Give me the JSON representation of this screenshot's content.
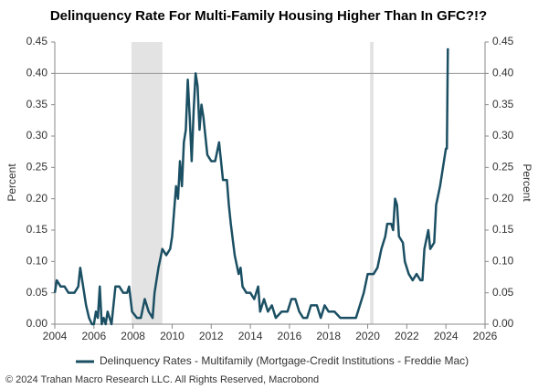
{
  "chart_data": {
    "type": "line",
    "title": "Delinquency Rate For Multi-Family Housing Higher Than In GFC?!?",
    "ylabel": "Percent",
    "y2label": "Percent",
    "footer": "© 2024 Trahan Macro Research LLC. All Rights Reserved, Macrobond",
    "xlim": [
      2004,
      2026
    ],
    "xticks": [
      2004,
      2006,
      2008,
      2010,
      2012,
      2014,
      2016,
      2018,
      2020,
      2022,
      2024,
      2026
    ],
    "ylim": [
      0,
      0.45
    ],
    "yticks": [
      {
        "value": 0,
        "label": "0.00"
      },
      {
        "value": 0.05,
        "label": "0.05"
      },
      {
        "value": 0.1,
        "label": "0.10"
      },
      {
        "value": 0.15,
        "label": "0.15"
      },
      {
        "value": 0.2,
        "label": "0.20"
      },
      {
        "value": 0.25,
        "label": "0.25"
      },
      {
        "value": 0.3,
        "label": "0.30"
      },
      {
        "value": 0.35,
        "label": "0.35"
      },
      {
        "value": 0.4,
        "label": "0.40"
      },
      {
        "value": 0.45,
        "label": "0.45"
      }
    ],
    "y2lim": [
      0,
      0.45
    ],
    "y2ticks": [
      {
        "value": 0,
        "label": "0.00"
      },
      {
        "value": 0.05,
        "label": "0.05"
      },
      {
        "value": 0.1,
        "label": "0.10"
      },
      {
        "value": 0.15,
        "label": "0.15"
      },
      {
        "value": 0.2,
        "label": "0.20"
      },
      {
        "value": 0.25,
        "label": "0.25"
      },
      {
        "value": 0.3,
        "label": "0.30"
      },
      {
        "value": 0.35,
        "label": "0.35"
      },
      {
        "value": 0.4,
        "label": "0.40"
      },
      {
        "value": 0.45,
        "label": "0.45"
      }
    ],
    "reference_line": 0.4,
    "shaded_ranges": [
      [
        2007.92,
        2009.5
      ],
      [
        2020.12,
        2020.3
      ]
    ],
    "x": [
      2004.0,
      2004.1,
      2004.3,
      2004.5,
      2004.7,
      2005.0,
      2005.2,
      2005.3,
      2005.45,
      2005.6,
      2005.75,
      2005.9,
      2006.0,
      2006.1,
      2006.2,
      2006.3,
      2006.4,
      2006.5,
      2006.6,
      2006.7,
      2006.8,
      2006.9,
      2007.0,
      2007.1,
      2007.3,
      2007.5,
      2007.7,
      2007.8,
      2007.95,
      2008.2,
      2008.4,
      2008.6,
      2008.8,
      2009.0,
      2009.1,
      2009.3,
      2009.5,
      2009.7,
      2009.9,
      2010.0,
      2010.2,
      2010.3,
      2010.4,
      2010.5,
      2010.6,
      2010.7,
      2010.8,
      2010.9,
      2011.0,
      2011.1,
      2011.2,
      2011.3,
      2011.4,
      2011.5,
      2011.6,
      2011.7,
      2011.8,
      2012.0,
      2012.2,
      2012.4,
      2012.6,
      2012.8,
      2012.9,
      2013.0,
      2013.2,
      2013.4,
      2013.5,
      2013.6,
      2013.8,
      2014.0,
      2014.2,
      2014.4,
      2014.5,
      2014.7,
      2014.9,
      2015.1,
      2015.3,
      2015.6,
      2015.9,
      2016.1,
      2016.3,
      2016.5,
      2016.7,
      2016.9,
      2017.1,
      2017.4,
      2017.6,
      2017.8,
      2018.0,
      2018.3,
      2018.6,
      2019.0,
      2019.4,
      2019.6,
      2019.8,
      2020.0,
      2020.3,
      2020.5,
      2020.7,
      2020.9,
      2021.0,
      2021.2,
      2021.3,
      2021.4,
      2021.5,
      2021.6,
      2021.8,
      2021.9,
      2022.1,
      2022.3,
      2022.5,
      2022.7,
      2022.8,
      2022.9,
      2023.1,
      2023.2,
      2023.4,
      2023.5,
      2023.7,
      2023.9,
      2024.0,
      2024.05,
      2024.1
    ],
    "series": [
      {
        "name": "Delinquency Rates -  Multifamily (Mortgage-Credit Institutions - Freddie Mac)",
        "color": "#1b4f63",
        "values": [
          0.05,
          0.07,
          0.06,
          0.06,
          0.05,
          0.05,
          0.06,
          0.09,
          0.06,
          0.03,
          0.01,
          0.0,
          0.0,
          0.02,
          0.01,
          0.06,
          0.0,
          0.01,
          0.0,
          0.02,
          0.01,
          0.0,
          0.03,
          0.06,
          0.06,
          0.05,
          0.05,
          0.06,
          0.02,
          0.01,
          0.01,
          0.04,
          0.02,
          0.01,
          0.05,
          0.09,
          0.12,
          0.11,
          0.12,
          0.14,
          0.22,
          0.2,
          0.26,
          0.22,
          0.29,
          0.31,
          0.39,
          0.33,
          0.26,
          0.34,
          0.4,
          0.38,
          0.31,
          0.35,
          0.33,
          0.3,
          0.27,
          0.26,
          0.26,
          0.29,
          0.23,
          0.23,
          0.19,
          0.16,
          0.11,
          0.08,
          0.09,
          0.06,
          0.05,
          0.05,
          0.04,
          0.06,
          0.02,
          0.04,
          0.02,
          0.03,
          0.01,
          0.02,
          0.02,
          0.04,
          0.04,
          0.02,
          0.01,
          0.01,
          0.03,
          0.03,
          0.01,
          0.03,
          0.02,
          0.02,
          0.01,
          0.01,
          0.01,
          0.03,
          0.05,
          0.08,
          0.08,
          0.09,
          0.12,
          0.14,
          0.16,
          0.16,
          0.15,
          0.2,
          0.19,
          0.14,
          0.13,
          0.1,
          0.08,
          0.07,
          0.08,
          0.07,
          0.07,
          0.12,
          0.15,
          0.12,
          0.13,
          0.19,
          0.22,
          0.26,
          0.28,
          0.28,
          0.44
        ]
      }
    ]
  }
}
